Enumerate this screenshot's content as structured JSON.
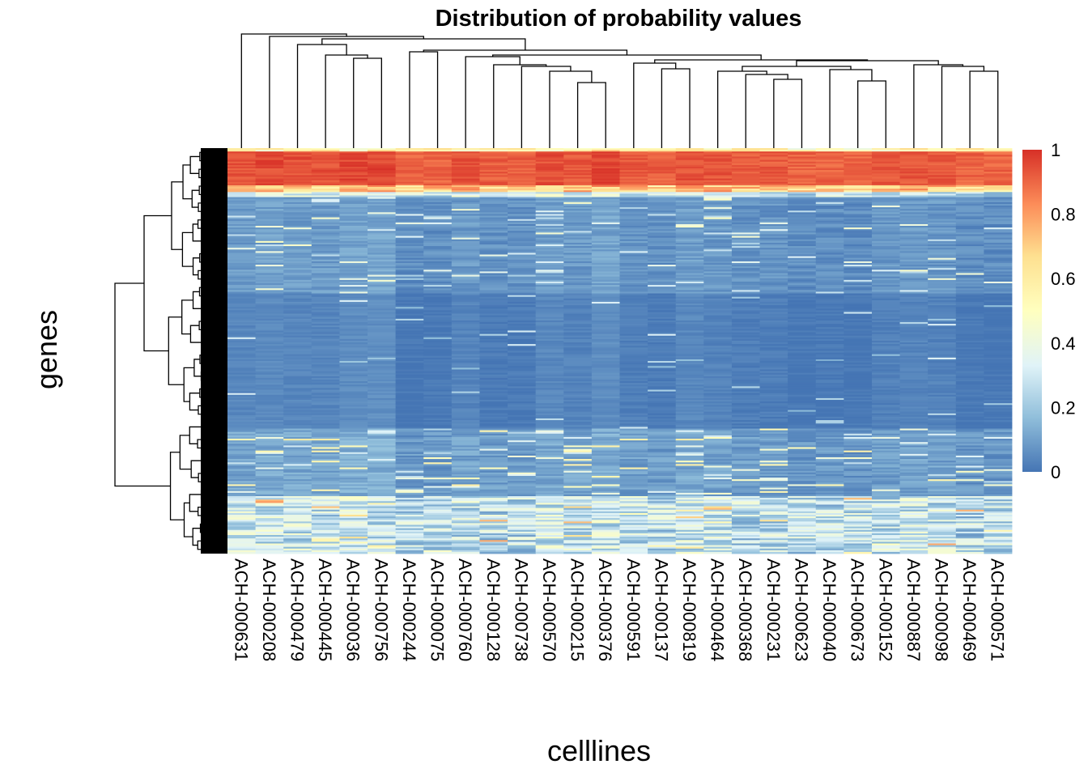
{
  "chart_data": {
    "type": "heatmap",
    "title": "Distribution of probability values",
    "xlabel": "celllines",
    "ylabel": "genes",
    "columns": [
      "ACH-000631",
      "ACH-000208",
      "ACH-000479",
      "ACH-000445",
      "ACH-000036",
      "ACH-000756",
      "ACH-000244",
      "ACH-000075",
      "ACH-000760",
      "ACH-000128",
      "ACH-000738",
      "ACH-000570",
      "ACH-000215",
      "ACH-000376",
      "ACH-000591",
      "ACH-000137",
      "ACH-000819",
      "ACH-000464",
      "ACH-000368",
      "ACH-000231",
      "ACH-000623",
      "ACH-000040",
      "ACH-000673",
      "ACH-000152",
      "ACH-000887",
      "ACH-000098",
      "ACH-000469",
      "ACH-000571"
    ],
    "value_range": [
      0,
      1
    ],
    "color_scale": [
      "#4575b4",
      "#91bfdb",
      "#e0f3f8",
      "#ffffbf",
      "#fee090",
      "#fc8d59",
      "#d73027"
    ],
    "legend": {
      "ticks": [
        0,
        0.2,
        0.4,
        0.6,
        0.8,
        1
      ],
      "tick_labels": [
        "0",
        "0.2",
        "0.4",
        "0.6",
        "0.8",
        "1"
      ]
    },
    "row_profile": [
      {
        "row_frac_end": 0.01,
        "value": 0.55
      },
      {
        "row_frac_end": 0.09,
        "value": 0.97
      },
      {
        "row_frac_end": 0.11,
        "value": 0.7
      },
      {
        "row_frac_end": 0.12,
        "value": 0.3
      },
      {
        "row_frac_end": 0.36,
        "value": 0.08
      },
      {
        "row_frac_end": 0.69,
        "value": 0.03
      },
      {
        "row_frac_end": 0.86,
        "value": 0.1
      },
      {
        "row_frac_end": 1.0,
        "value": 0.28
      }
    ],
    "row_dendrogram": true,
    "column_dendrogram": true
  }
}
